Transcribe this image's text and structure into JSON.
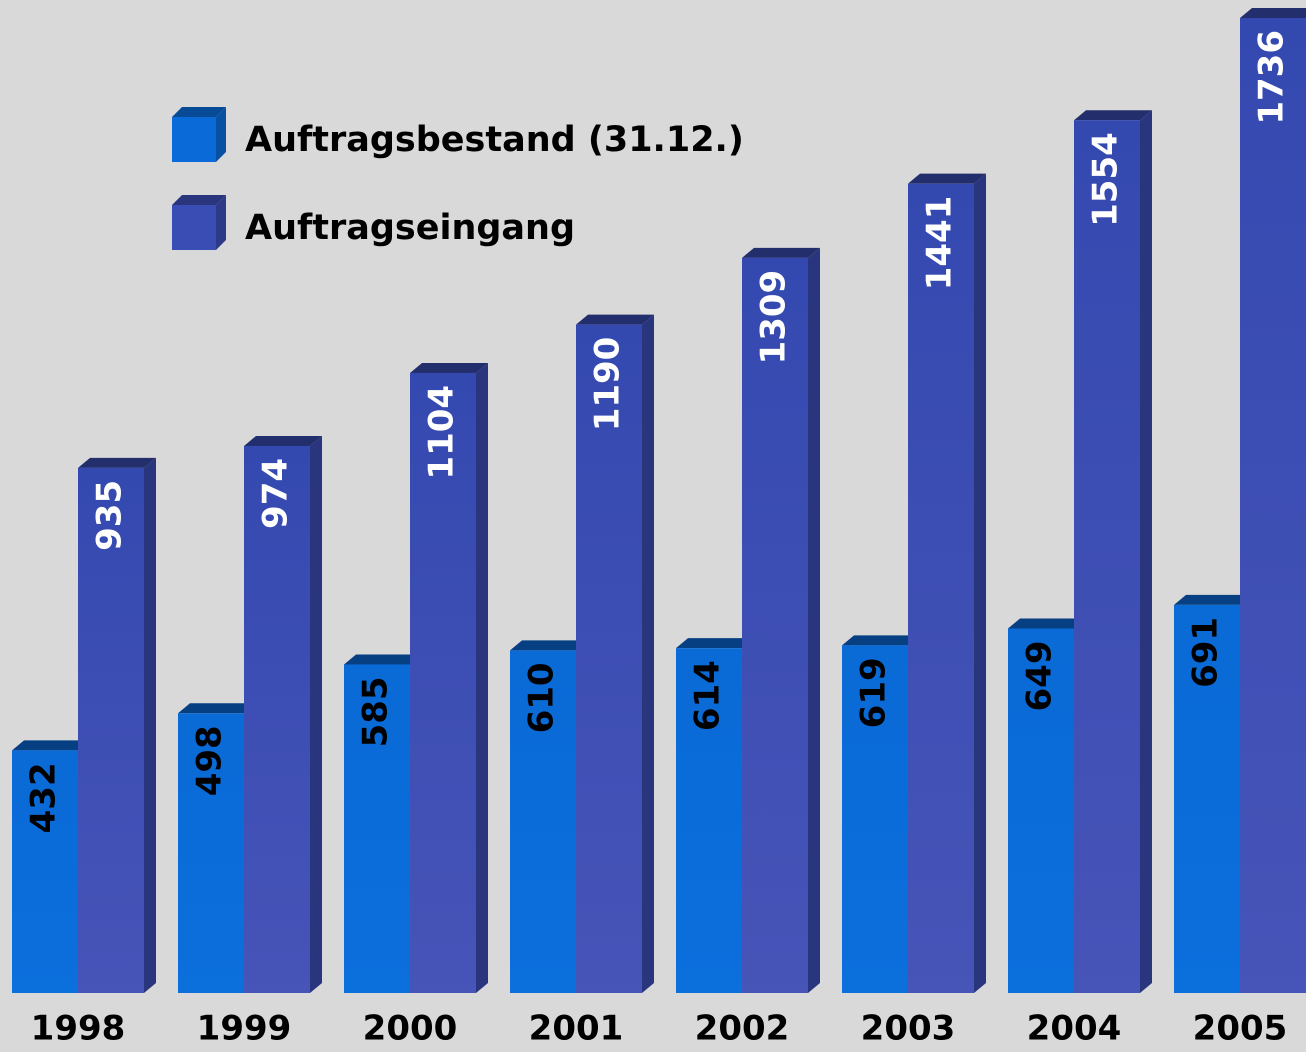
{
  "chart_data": {
    "type": "bar3d",
    "categories": [
      "1998",
      "1999",
      "2000",
      "2001",
      "2002",
      "2003",
      "2004",
      "2005"
    ],
    "series": [
      {
        "name": "Auftragsbestand (31.12.)",
        "color": "#0a6bd8",
        "label_color": "#000000",
        "values": [
          432,
          498,
          585,
          610,
          614,
          619,
          649,
          691
        ]
      },
      {
        "name": "Auftragseingang",
        "color": "#3a4db4",
        "label_color": "#ffffff",
        "values": [
          935,
          974,
          1104,
          1190,
          1309,
          1441,
          1554,
          1736
        ]
      }
    ]
  }
}
